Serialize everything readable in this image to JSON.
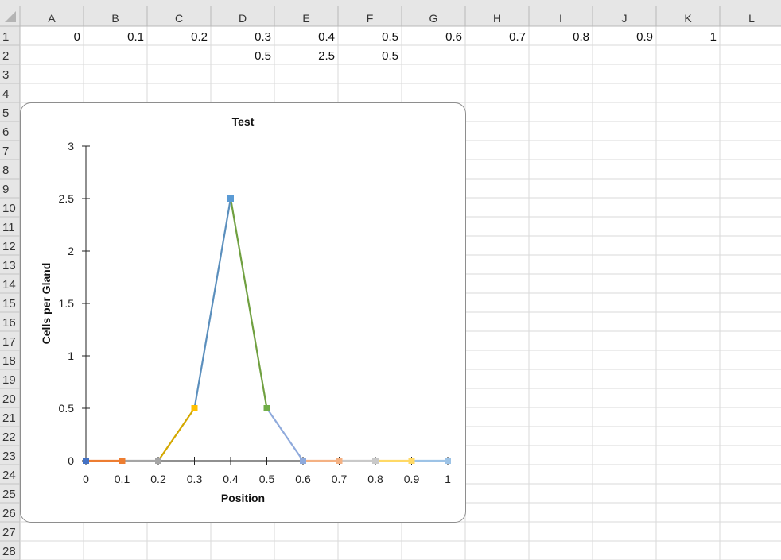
{
  "sheet": {
    "columns": [
      "A",
      "B",
      "C",
      "D",
      "E",
      "F",
      "G",
      "H",
      "I",
      "J",
      "K",
      "L"
    ],
    "rows": [
      "1",
      "2",
      "3",
      "4",
      "5",
      "6",
      "7",
      "8",
      "9",
      "10",
      "11",
      "12",
      "13",
      "14",
      "15",
      "16",
      "17",
      "18",
      "19",
      "20",
      "21",
      "22",
      "23",
      "24",
      "25",
      "26",
      "27",
      "28"
    ],
    "row1": [
      "0",
      "0.1",
      "0.2",
      "0.3",
      "0.4",
      "0.5",
      "0.6",
      "0.7",
      "0.8",
      "0.9",
      "1"
    ],
    "row2": {
      "D": "0.5",
      "E": "2.5",
      "F": "0.5"
    }
  },
  "chart_data": {
    "type": "line",
    "title": "Test",
    "xlabel": "Position",
    "ylabel": "Cells per Gland",
    "x_ticks": [
      "0",
      "0.1",
      "0.2",
      "0.3",
      "0.4",
      "0.5",
      "0.6",
      "0.7",
      "0.8",
      "0.9",
      "1"
    ],
    "y_ticks": [
      "0",
      "0.5",
      "1",
      "1.5",
      "2",
      "2.5",
      "3"
    ],
    "xlim": [
      0,
      1
    ],
    "ylim": [
      0,
      3
    ],
    "grid": false,
    "points": [
      {
        "x": 0.0,
        "y": 0
      },
      {
        "x": 0.1,
        "y": 0
      },
      {
        "x": 0.2,
        "y": 0
      },
      {
        "x": 0.3,
        "y": 0.5
      },
      {
        "x": 0.4,
        "y": 2.5
      },
      {
        "x": 0.5,
        "y": 0.5
      },
      {
        "x": 0.6,
        "y": 0
      },
      {
        "x": 0.7,
        "y": 0
      },
      {
        "x": 0.8,
        "y": 0
      },
      {
        "x": 0.9,
        "y": 0
      },
      {
        "x": 1.0,
        "y": 0
      }
    ],
    "point_colors": [
      "#4472c4",
      "#ed7d31",
      "#a5a5a5",
      "#ffc000",
      "#5b9bd5",
      "#70ad47",
      "#8faadc",
      "#f4b183",
      "#c9c9c9",
      "#ffd966",
      "#9dc3e6"
    ],
    "segment_colors": [
      "#ed7d31",
      "#a5a5a5",
      "#d4a800",
      "#5b8fbd",
      "#70a040",
      "#8faadc",
      "#f4b183",
      "#c9c9c9",
      "#ffd966",
      "#9dc3e6"
    ]
  }
}
